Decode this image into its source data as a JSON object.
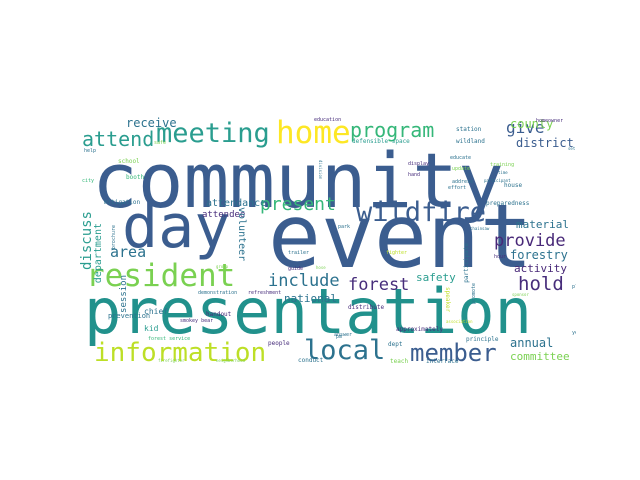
{
  "words": [
    {
      "text": "community",
      "color": "#3b5d8f"
    },
    {
      "text": "event",
      "color": "#3b5d8f"
    },
    {
      "text": "day",
      "color": "#3b5d8f"
    },
    {
      "text": "presentation",
      "color": "#21918c"
    },
    {
      "text": "information",
      "color": "#bddf26"
    },
    {
      "text": "resident",
      "color": "#7ad151"
    },
    {
      "text": "home",
      "color": "#fde725"
    },
    {
      "text": "meeting",
      "color": "#2a9d8f"
    },
    {
      "text": "program",
      "color": "#35b779"
    },
    {
      "text": "wildfire",
      "color": "#3b5d8f"
    },
    {
      "text": "local",
      "color": "#2c728e"
    },
    {
      "text": "member",
      "color": "#3b5d8f"
    },
    {
      "text": "attend",
      "color": "#2a9d8f"
    },
    {
      "text": "present",
      "color": "#35b779"
    },
    {
      "text": "include",
      "color": "#2c728e"
    },
    {
      "text": "provide",
      "color": "#482878"
    },
    {
      "text": "hold",
      "color": "#472d7b"
    },
    {
      "text": "forest",
      "color": "#472d7b"
    },
    {
      "text": "give",
      "color": "#3b5d8f"
    },
    {
      "text": "area",
      "color": "#2c728e"
    },
    {
      "text": "discuss",
      "color": "#2a9d8f"
    },
    {
      "text": "county",
      "color": "#7ad151"
    },
    {
      "text": "district",
      "color": "#3b5d8f"
    },
    {
      "text": "receive",
      "color": "#2c728e"
    },
    {
      "text": "forestry",
      "color": "#2c728e"
    },
    {
      "text": "activity",
      "color": "#482878"
    },
    {
      "text": "annual",
      "color": "#2c728e"
    },
    {
      "text": "committee",
      "color": "#7ad151"
    },
    {
      "text": "material",
      "color": "#2c728e"
    },
    {
      "text": "national",
      "color": "#2c728e"
    },
    {
      "text": "safety",
      "color": "#2a9d8f"
    },
    {
      "text": "attendance",
      "color": "#2c728e"
    },
    {
      "text": "attendee",
      "color": "#472d7b"
    },
    {
      "text": "volunteer",
      "color": "#2c728e"
    },
    {
      "text": "department",
      "color": "#2a9d8f"
    },
    {
      "text": "session",
      "color": "#2c728e"
    },
    {
      "text": "prevention",
      "color": "#2c728e"
    },
    {
      "text": "chief",
      "color": "#2c728e"
    },
    {
      "text": "kid",
      "color": "#2a9d8f"
    },
    {
      "text": "station",
      "color": "#2c728e"
    },
    {
      "text": "school",
      "color": "#7ad151"
    },
    {
      "text": "booth",
      "color": "#35b779"
    },
    {
      "text": "mitigation",
      "color": "#2c728e"
    },
    {
      "text": "defensible space",
      "color": "#2a9d8f"
    },
    {
      "text": "wildland",
      "color": "#2c728e"
    },
    {
      "text": "preparedness",
      "color": "#2c728e"
    },
    {
      "text": "house",
      "color": "#2c728e"
    },
    {
      "text": "handout",
      "color": "#472d7b"
    },
    {
      "text": "demonstration",
      "color": "#2c728e"
    },
    {
      "text": "refreshment",
      "color": "#472d7b"
    },
    {
      "text": "smokey bear",
      "color": "#472d7b"
    },
    {
      "text": "forest service",
      "color": "#35b779"
    },
    {
      "text": "conduct",
      "color": "#2c728e"
    },
    {
      "text": "people",
      "color": "#472d7b"
    },
    {
      "text": "dept",
      "color": "#2c728e"
    },
    {
      "text": "approximately",
      "color": "#472d7b"
    },
    {
      "text": "principle",
      "color": "#2c728e"
    },
    {
      "text": "interface",
      "color": "#2c728e"
    },
    {
      "text": "teach",
      "color": "#7ad151"
    },
    {
      "text": "answer",
      "color": "#2c728e"
    },
    {
      "text": "distribute",
      "color": "#472d7b"
    },
    {
      "text": "speaker",
      "color": "#bddf26"
    },
    {
      "text": "participate",
      "color": "#2c728e"
    },
    {
      "text": "promote",
      "color": "#2c728e"
    },
    {
      "text": "hour",
      "color": "#472d7b"
    },
    {
      "text": "plan",
      "color": "#2c728e"
    },
    {
      "text": "year",
      "color": "#2c728e"
    },
    {
      "text": "education",
      "color": "#472d7b"
    },
    {
      "text": "homeowner",
      "color": "#472d7b"
    },
    {
      "text": "help",
      "color": "#2c728e"
    },
    {
      "text": "safe",
      "color": "#7ad151"
    },
    {
      "text": "city",
      "color": "#35b779"
    },
    {
      "text": "brochure",
      "color": "#2c728e"
    },
    {
      "text": "trailer",
      "color": "#2c728e"
    },
    {
      "text": "guide",
      "color": "#472d7b"
    },
    {
      "text": "hose",
      "color": "#7ad151"
    },
    {
      "text": "fighter",
      "color": "#bddf26"
    },
    {
      "text": "display",
      "color": "#472d7b"
    },
    {
      "text": "hand",
      "color": "#472d7b"
    },
    {
      "text": "educate",
      "color": "#2c728e"
    },
    {
      "text": "update",
      "color": "#7ad151"
    },
    {
      "text": "address",
      "color": "#2c728e"
    },
    {
      "text": "effort",
      "color": "#2c728e"
    },
    {
      "text": "training",
      "color": "#7ad151"
    },
    {
      "text": "time",
      "color": "#2c728e"
    },
    {
      "text": "participant",
      "color": "#2c728e"
    },
    {
      "text": "park",
      "color": "#2c728e"
    },
    {
      "text": "chainsaw",
      "color": "#2c728e"
    },
    {
      "text": "pm",
      "color": "#2c728e"
    },
    {
      "text": "firefighter",
      "color": "#7ad151"
    },
    {
      "text": "neighborhood",
      "color": "#7ad151"
    },
    {
      "text": "division",
      "color": "#2c728e"
    },
    {
      "text": "group",
      "color": "#7ad151"
    },
    {
      "text": "association",
      "color": "#bddf26"
    },
    {
      "text": "set",
      "color": "#2c728e"
    },
    {
      "text": "sponsor",
      "color": "#7ad151"
    }
  ]
}
